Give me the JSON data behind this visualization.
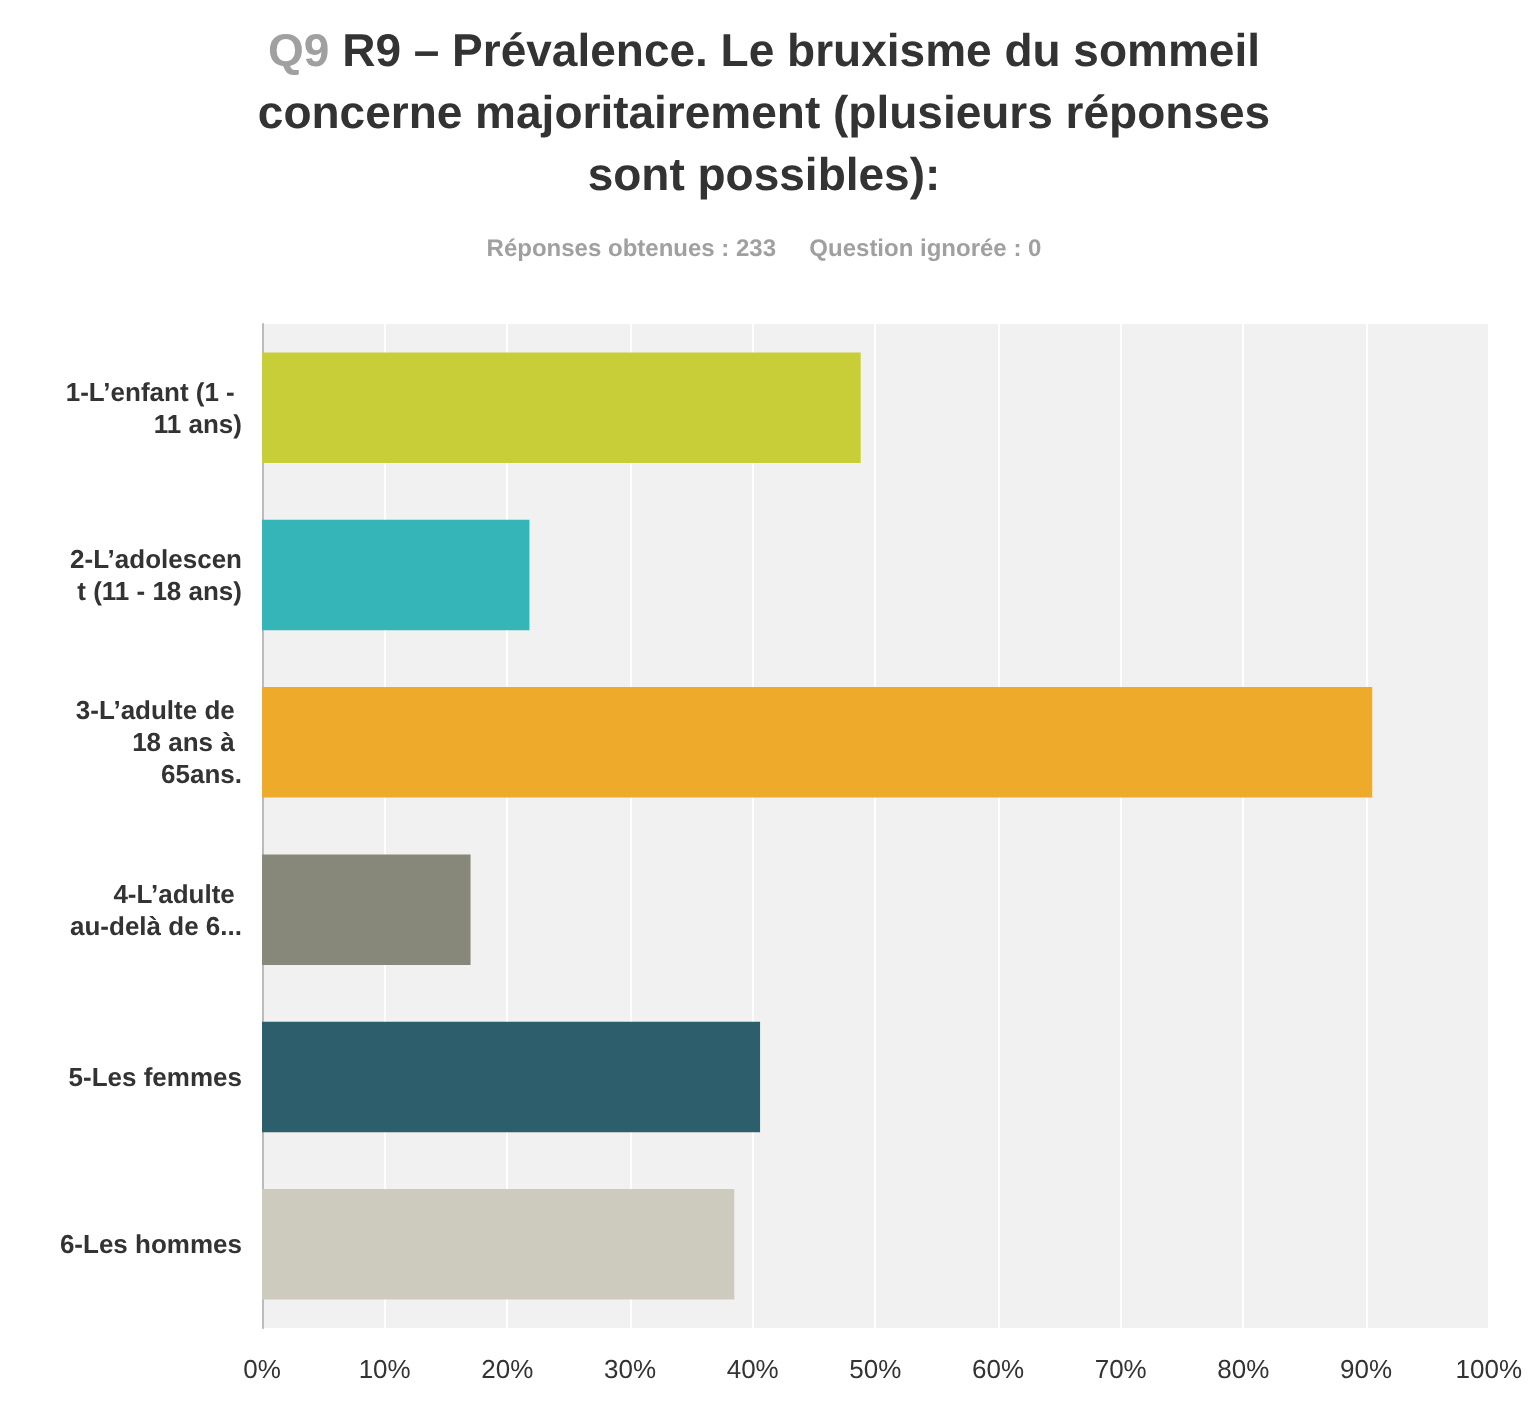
{
  "chart_data": {
    "type": "bar",
    "orientation": "horizontal",
    "title": "Q9 R9 – Prévalence. Le bruxisme du sommeil concerne majoritairement (plusieurs réponses sont possibles):",
    "subtitle": "Réponses obtenues : 233     Question ignorée : 0",
    "categories": [
      "1-L’enfant (1 - 11 ans)",
      "2-L’adolescent (11 - 18 ans)",
      "3-L’adulte de 18 ans à 65ans.",
      "4-L’adulte au-delà de 6...",
      "5-Les femmes",
      "6-Les hommes"
    ],
    "values": [
      48.8,
      21.8,
      90.5,
      17.0,
      40.6,
      38.5
    ],
    "colors": [
      "#c7ce38",
      "#35b5b7",
      "#eeaa2a",
      "#88887a",
      "#2d5e6b",
      "#cdcbbe"
    ],
    "xlim": [
      0,
      100
    ],
    "xticks": [
      {
        "value": 0,
        "label": "0%"
      },
      {
        "value": 10,
        "label": "10%"
      },
      {
        "value": 20,
        "label": "20%"
      },
      {
        "value": 30,
        "label": "30%"
      },
      {
        "value": 40,
        "label": "40%"
      },
      {
        "value": 50,
        "label": "50%"
      },
      {
        "value": 60,
        "label": "60%"
      },
      {
        "value": 70,
        "label": "70%"
      },
      {
        "value": 80,
        "label": "80%"
      },
      {
        "value": 90,
        "label": "90%"
      },
      {
        "value": 100,
        "label": "100%"
      }
    ],
    "grid": "x"
  }
}
